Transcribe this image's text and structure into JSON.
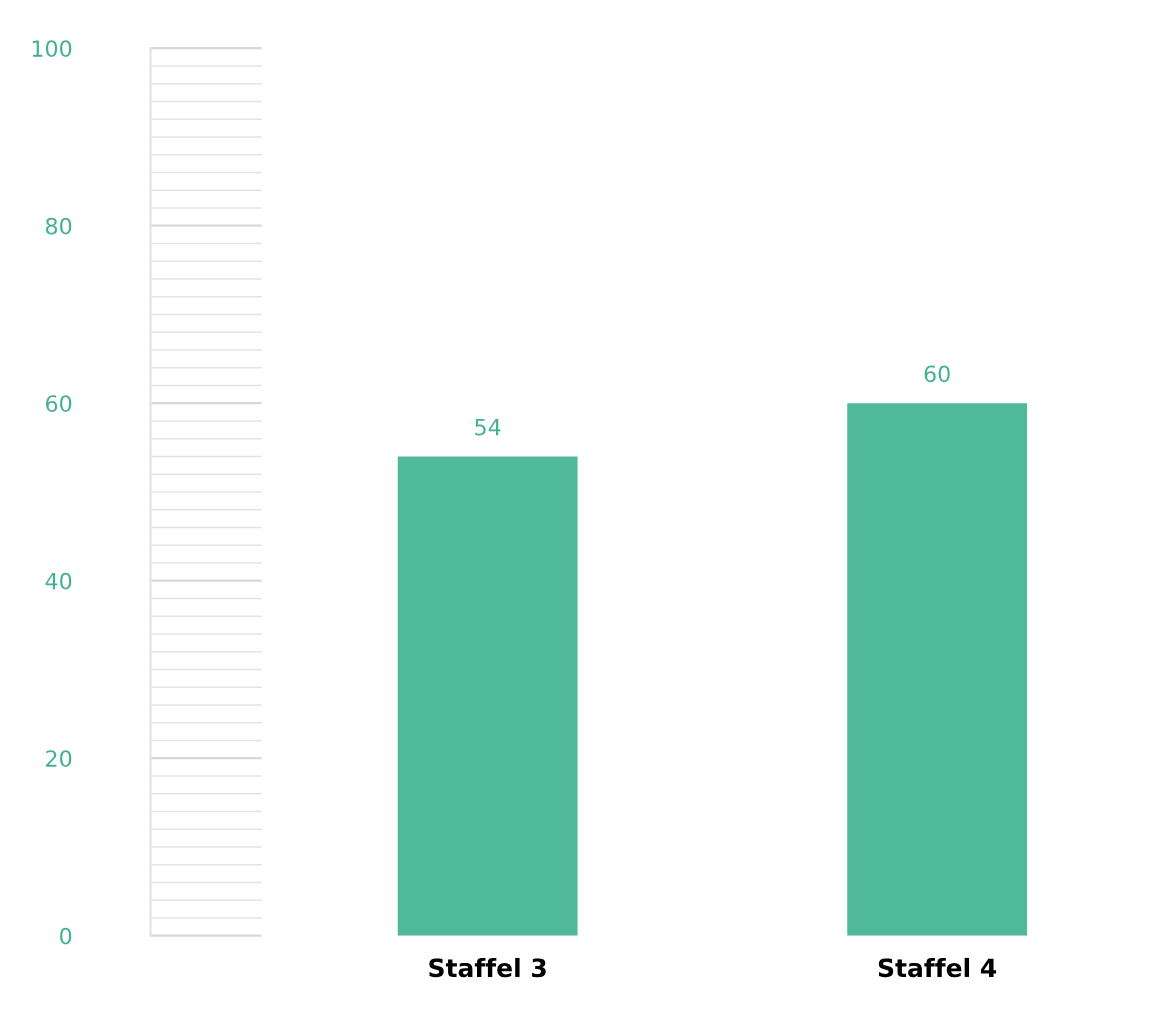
{
  "chart_data": {
    "type": "bar",
    "categories": [
      "Staffel 3",
      "Staffel 4"
    ],
    "values": [
      54,
      60
    ],
    "color": "#4fb99a",
    "ylim": [
      0,
      100
    ],
    "yticks": [
      0,
      20,
      40,
      60,
      80,
      100
    ],
    "data_labels": true,
    "grid": false,
    "legend": false
  }
}
